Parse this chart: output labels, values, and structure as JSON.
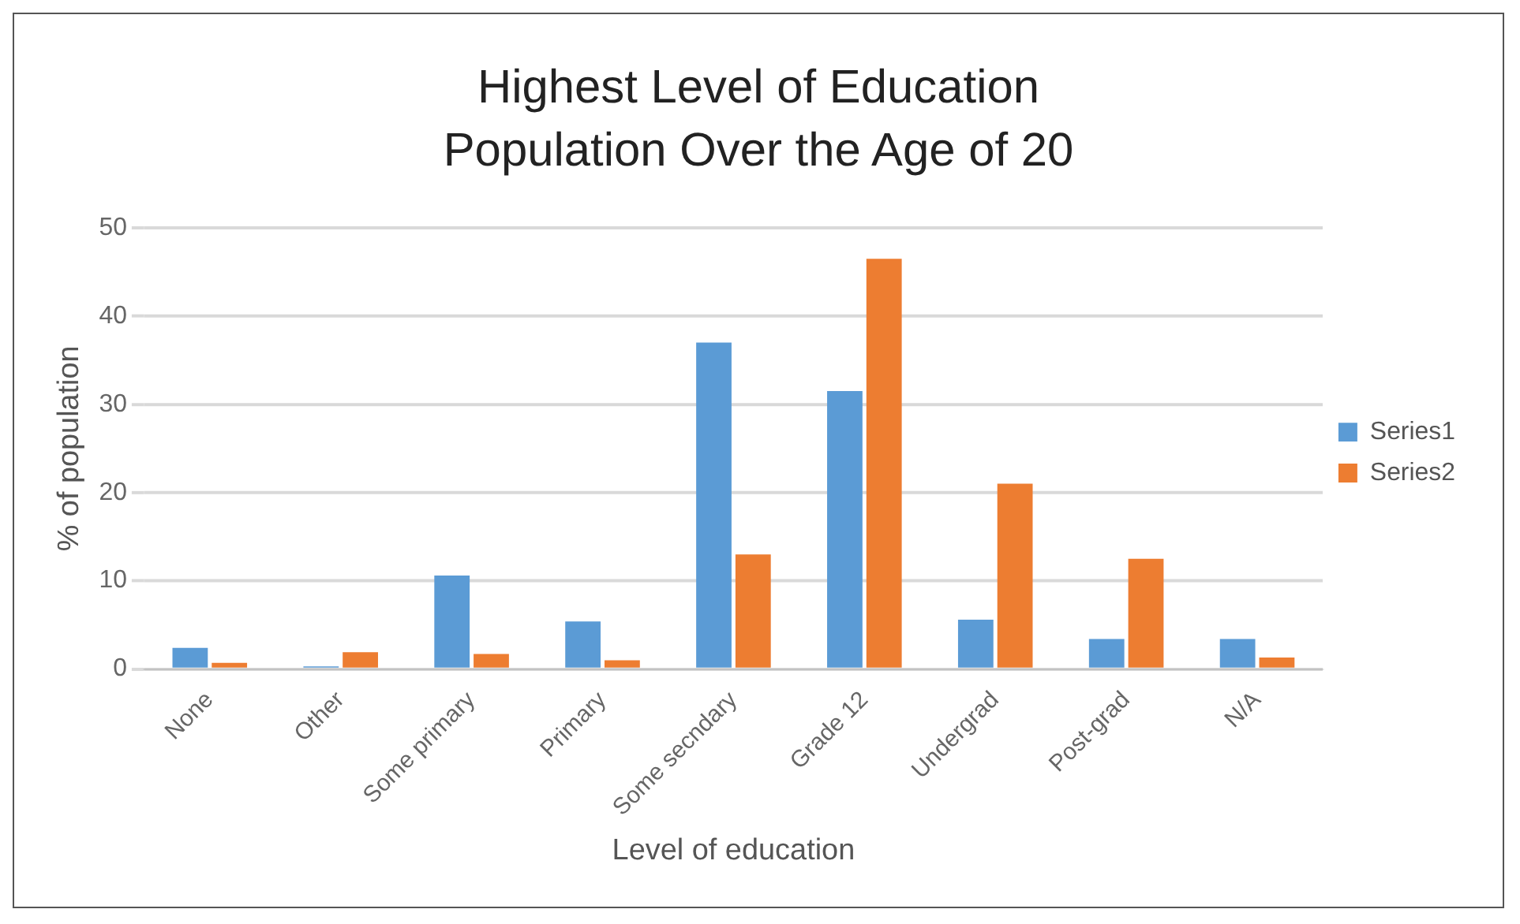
{
  "chart_data": {
    "type": "bar",
    "title": "Highest Level of Education",
    "subtitle": "Population Over the Age of 20",
    "xlabel": "Level of education",
    "ylabel": "% of population",
    "categories": [
      "None",
      "Other",
      "Some primary",
      "Primary",
      "Some secndary",
      "Grade 12",
      "Undergrad",
      "Post-grad",
      "N/A"
    ],
    "series": [
      {
        "name": "Series1",
        "color": "#5b9bd5",
        "values": [
          2.4,
          0.3,
          10.6,
          5.4,
          37,
          31.5,
          5.6,
          3.4,
          3.4
        ]
      },
      {
        "name": "Series2",
        "color": "#ed7d31",
        "values": [
          0.7,
          1.9,
          1.7,
          1,
          13,
          46.5,
          21,
          12.5,
          1.3
        ]
      }
    ],
    "ylim": [
      0,
      50
    ],
    "yticks": [
      0,
      10,
      20,
      30,
      40,
      50
    ],
    "grid": "y",
    "legend": "right"
  }
}
